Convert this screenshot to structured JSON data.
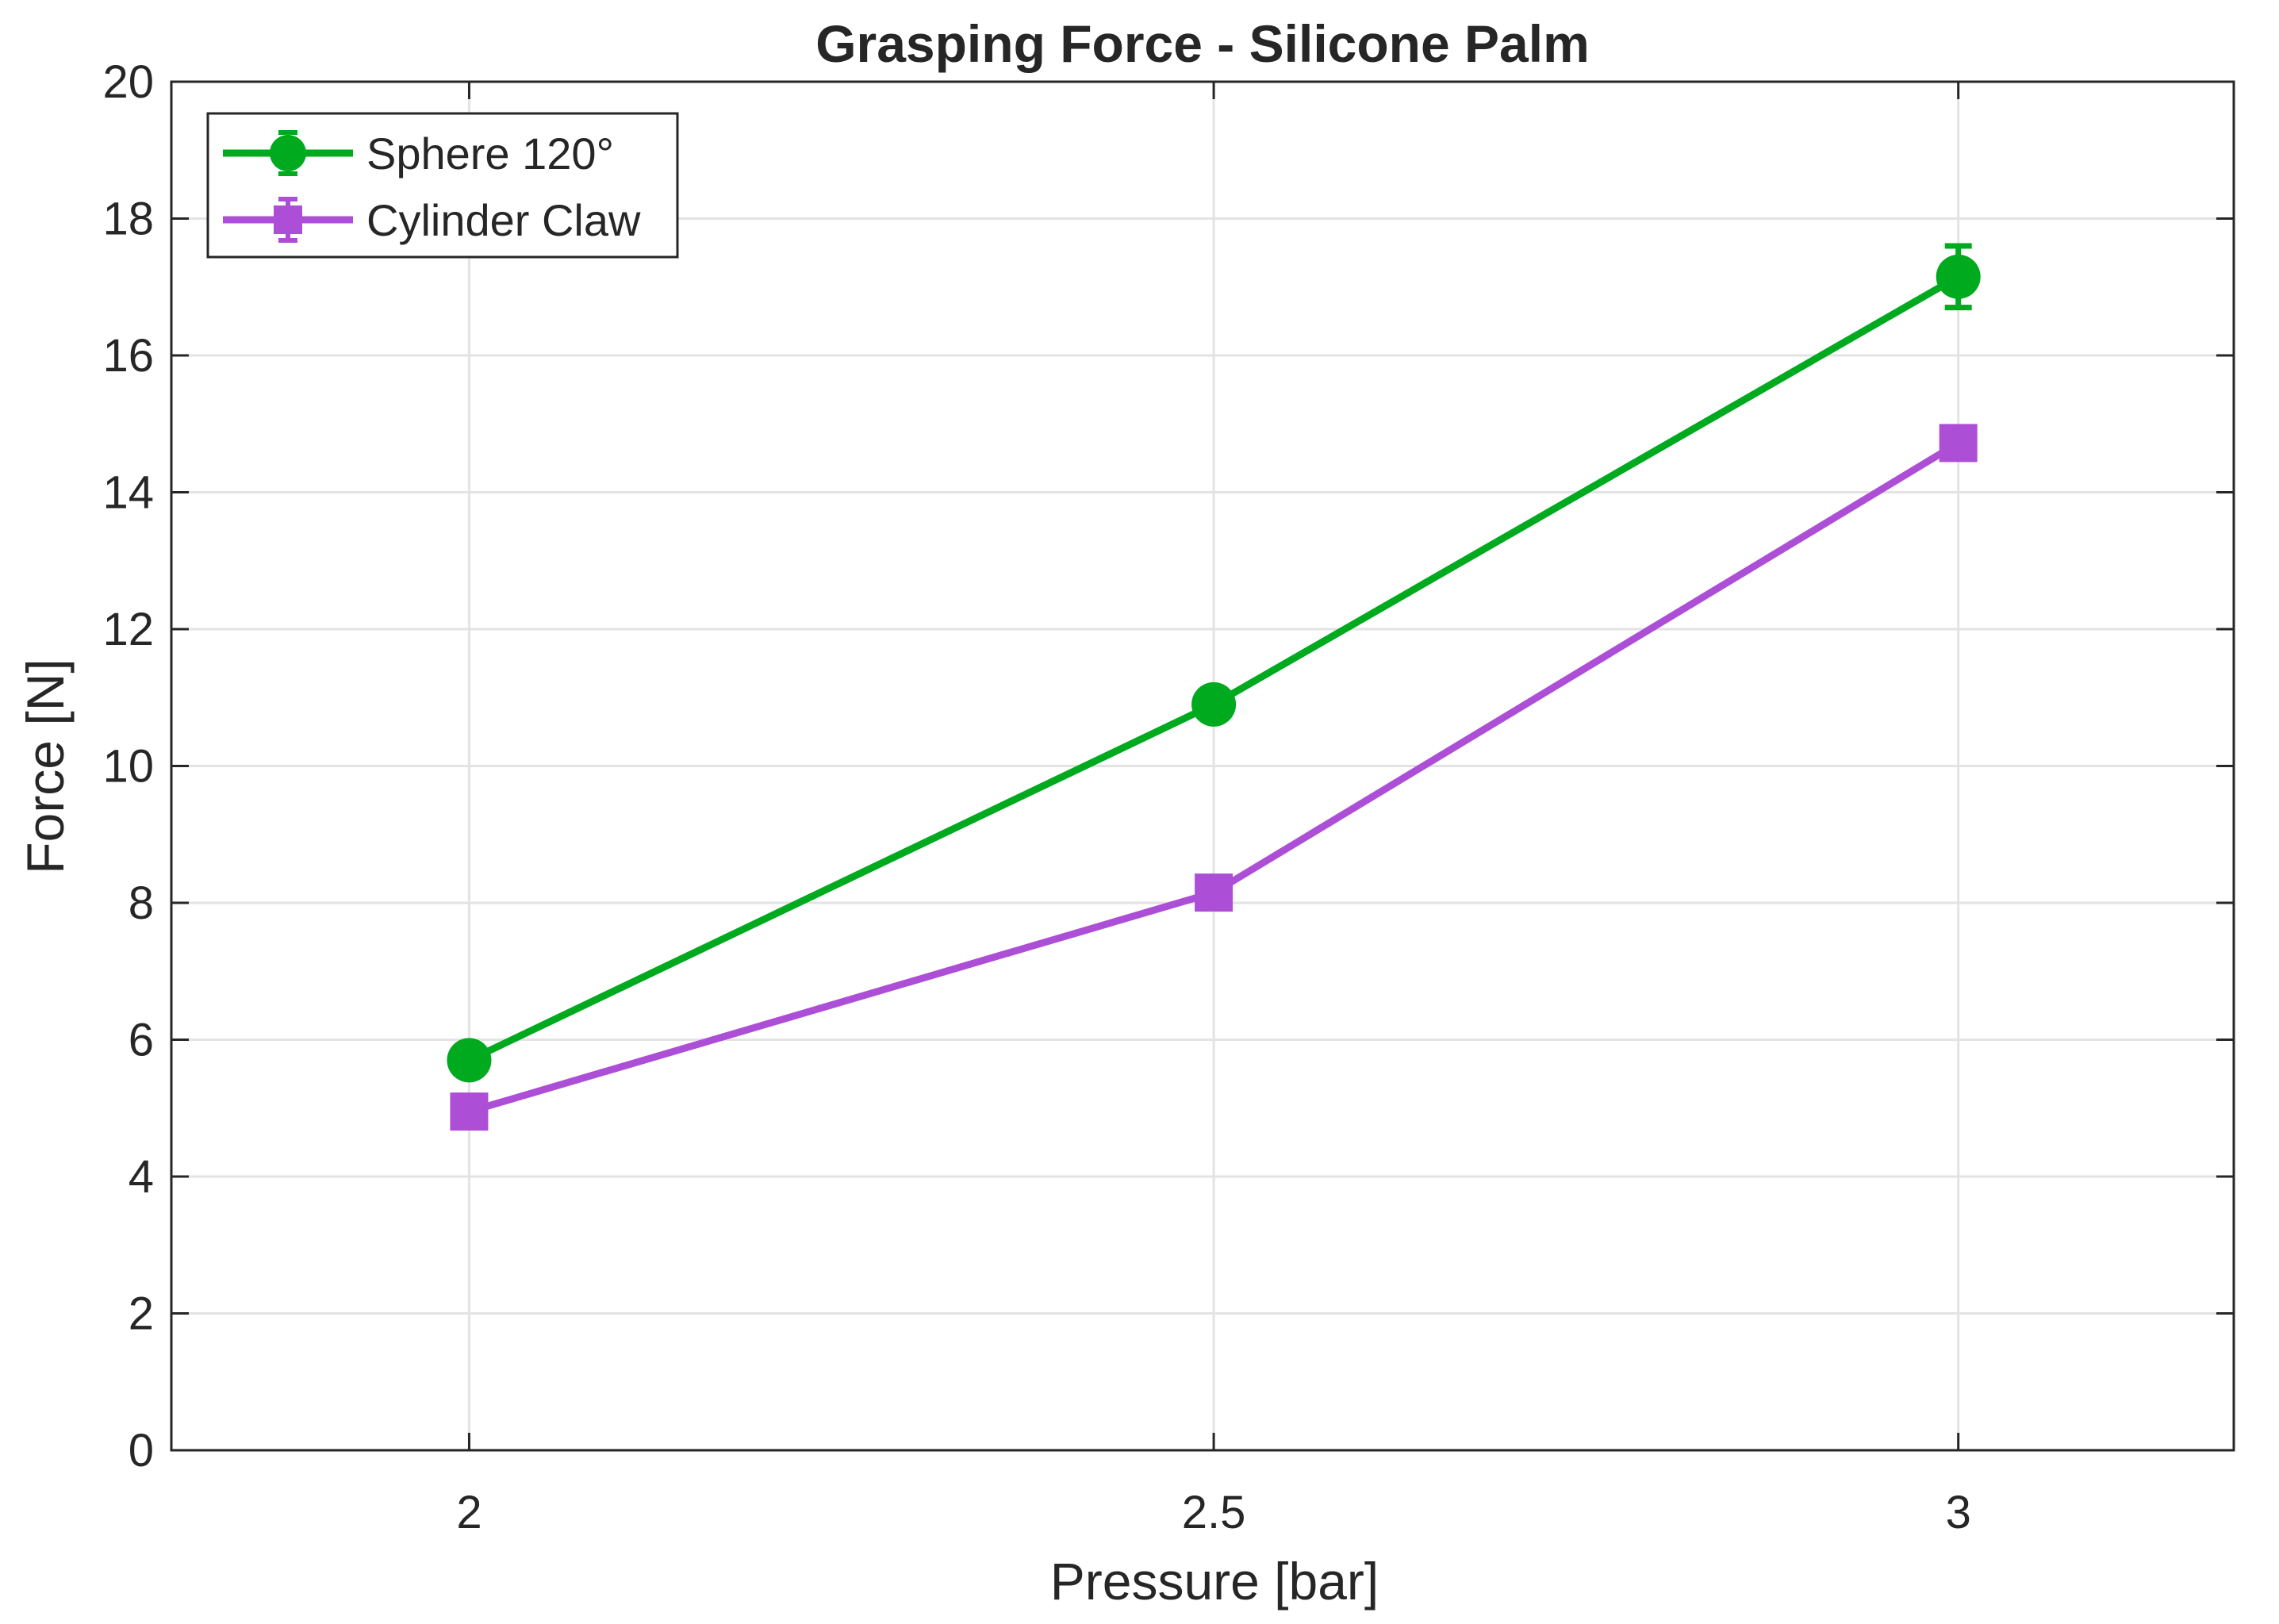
{
  "chart_data": {
    "type": "line",
    "title": "Grasping Force - Silicone Palm",
    "xlabel": "Pressure [bar]",
    "ylabel": "Force [N]",
    "x": [
      2,
      2.5,
      3
    ],
    "xlim": [
      1.8,
      3.185
    ],
    "ylim": [
      0,
      20
    ],
    "xticks": [
      "2",
      "2.5",
      "3"
    ],
    "yticks": [
      "0",
      "2",
      "4",
      "6",
      "8",
      "10",
      "12",
      "14",
      "16",
      "18",
      "20"
    ],
    "grid": true,
    "legend_position": "top-left",
    "series": [
      {
        "name": "Sphere 120°",
        "color": "#00aa1e",
        "marker": "circle",
        "values": [
          5.7,
          10.9,
          17.15
        ],
        "errors": [
          0.12,
          0.12,
          0.45
        ]
      },
      {
        "name": "Cylinder Claw",
        "color": "#ad4fd6",
        "marker": "square",
        "values": [
          4.95,
          8.15,
          14.72
        ],
        "errors": [
          0.08,
          0.08,
          0.1
        ]
      }
    ]
  }
}
